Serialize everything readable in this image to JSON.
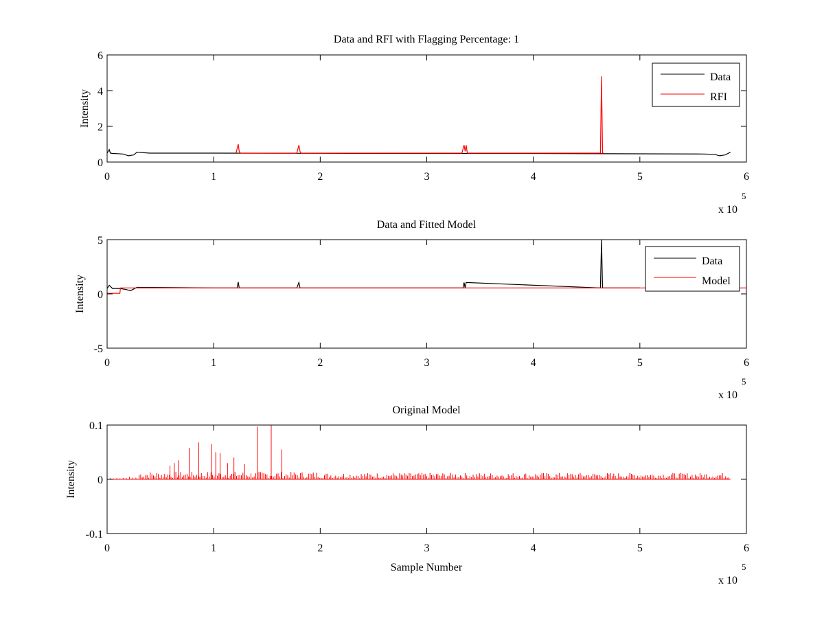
{
  "chart_data": [
    {
      "type": "line",
      "title": "Data and RFI with Flagging Percentage: 1",
      "xlabel": "",
      "ylabel": "Intensity",
      "xlim": [
        0,
        600000
      ],
      "ylim": [
        0,
        6
      ],
      "xticks": [
        "0",
        "1",
        "2",
        "3",
        "4",
        "5",
        "6"
      ],
      "yticks": [
        "0",
        "2",
        "4",
        "6"
      ],
      "x_multiplier": "x 10",
      "x_exponent": "5",
      "legend": {
        "position": "top-right",
        "entries": [
          "Data",
          "RFI"
        ]
      },
      "series": [
        {
          "name": "Data",
          "color": "#000000",
          "x": [
            0,
            2000,
            3000,
            5000,
            10000,
            15000,
            20000,
            25000,
            28000,
            40000,
            100000,
            200000,
            300000,
            400000,
            500000,
            560000,
            570000,
            575000,
            580000,
            585000
          ],
          "y": [
            0.5,
            0.7,
            0.5,
            0.48,
            0.47,
            0.45,
            0.35,
            0.4,
            0.55,
            0.5,
            0.5,
            0.49,
            0.48,
            0.48,
            0.46,
            0.45,
            0.43,
            0.35,
            0.4,
            0.55
          ]
        },
        {
          "name": "RFI",
          "color": "#ff0000",
          "x": [
            121000,
            123000,
            124000,
            125000,
            178000,
            180000,
            181000,
            182000,
            333000,
            335000,
            336000,
            337000,
            338000,
            463000,
            464000,
            465000,
            466000
          ],
          "y": [
            0.5,
            1.0,
            0.6,
            0.5,
            0.5,
            0.95,
            0.6,
            0.5,
            0.5,
            0.95,
            0.6,
            0.95,
            0.5,
            0.5,
            4.8,
            0.5,
            0.5
          ]
        }
      ]
    },
    {
      "type": "line",
      "title": "Data and Fitted Model",
      "xlabel": "",
      "ylabel": "Intensity",
      "xlim": [
        0,
        600000
      ],
      "ylim": [
        -5,
        5
      ],
      "xticks": [
        "0",
        "1",
        "2",
        "3",
        "4",
        "5",
        "6"
      ],
      "yticks": [
        "-5",
        "0",
        "5"
      ],
      "x_multiplier": "x 10",
      "x_exponent": "5",
      "legend": {
        "position": "top-right",
        "entries": [
          "Data",
          "Model"
        ]
      },
      "series": [
        {
          "name": "Data",
          "color": "#000000",
          "x": [
            0,
            2000,
            5000,
            12000,
            18000,
            22000,
            28000,
            100000,
            122000,
            123000,
            124000,
            178000,
            180000,
            181000,
            334000,
            335000,
            336000,
            337000,
            463000,
            464000,
            465000,
            500000
          ],
          "y": [
            0.5,
            0.8,
            0.5,
            0.5,
            0.4,
            0.3,
            0.6,
            0.55,
            0.55,
            1.1,
            0.55,
            0.55,
            1.05,
            0.55,
            0.55,
            1.05,
            0.55,
            1.05,
            0.55,
            5.0,
            0.55,
            0.55
          ]
        },
        {
          "name": "Model",
          "color": "#ff0000",
          "x": [
            0,
            12000,
            12500,
            100000,
            200000,
            300000,
            400000,
            500000,
            600000
          ],
          "y": [
            0.05,
            0.05,
            0.55,
            0.55,
            0.55,
            0.55,
            0.55,
            0.55,
            0.55
          ]
        }
      ]
    },
    {
      "type": "line",
      "title": "Original Model",
      "xlabel": "Sample Number",
      "ylabel": "Intensity",
      "xlim": [
        0,
        600000
      ],
      "ylim": [
        -0.1,
        0.1
      ],
      "xticks": [
        "0",
        "1",
        "2",
        "3",
        "4",
        "5",
        "6"
      ],
      "yticks": [
        "-0.1",
        "0",
        "0.1"
      ],
      "x_multiplier": "x 10",
      "x_exponent": "5",
      "series": [
        {
          "name": "",
          "color": "#ff0000",
          "x_range": [
            0,
            585000
          ],
          "baseline": 0,
          "spikes": [
            [
              59000,
              0.025
            ],
            [
              63000,
              0.03
            ],
            [
              67000,
              0.035
            ],
            [
              77000,
              0.058
            ],
            [
              86000,
              0.068
            ],
            [
              98000,
              0.065
            ],
            [
              102000,
              0.05
            ],
            [
              106000,
              0.048
            ],
            [
              113000,
              0.03
            ],
            [
              119000,
              0.04
            ],
            [
              129000,
              0.028
            ],
            [
              141000,
              0.097
            ],
            [
              154000,
              0.1
            ],
            [
              164000,
              0.055
            ]
          ]
        }
      ]
    }
  ]
}
